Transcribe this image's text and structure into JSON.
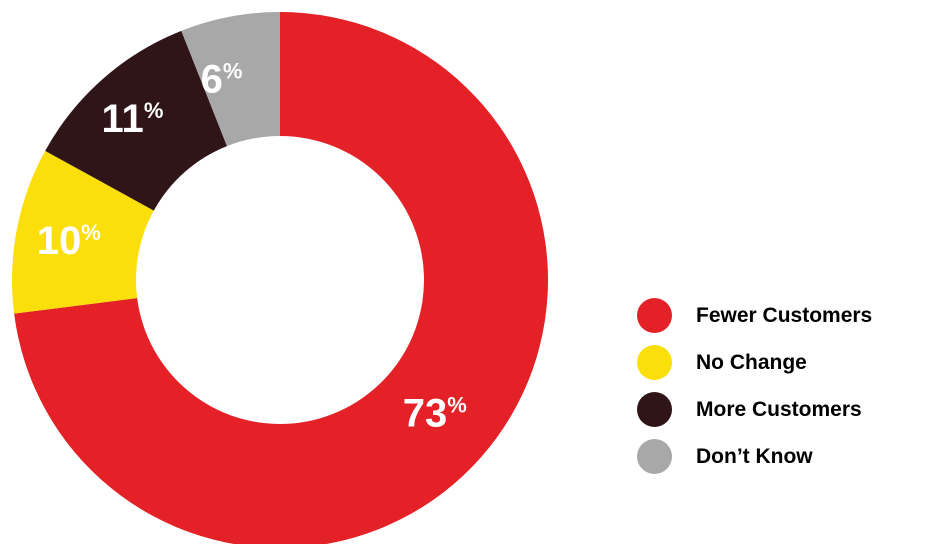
{
  "chart_data": {
    "type": "pie",
    "variant": "donut",
    "title": "",
    "categories": [
      "Fewer Customers",
      "No Change",
      "More Customers",
      "Don’t Know"
    ],
    "values": [
      73,
      10,
      11,
      6
    ],
    "value_suffix": "%",
    "colors": [
      "#e32126",
      "#fadf0a",
      "#2f1418",
      "#a8a8a8"
    ],
    "slice_labels": [
      "73",
      "10",
      "11",
      "6"
    ],
    "legend": {
      "position": "right",
      "items": [
        {
          "label": "Fewer Customers",
          "color": "#e32126"
        },
        {
          "label": "No Change",
          "color": "#fadf0a"
        },
        {
          "label": "More Customers",
          "color": "#2f1418"
        },
        {
          "label": "Don’t Know",
          "color": "#a8a8a8"
        }
      ]
    }
  }
}
